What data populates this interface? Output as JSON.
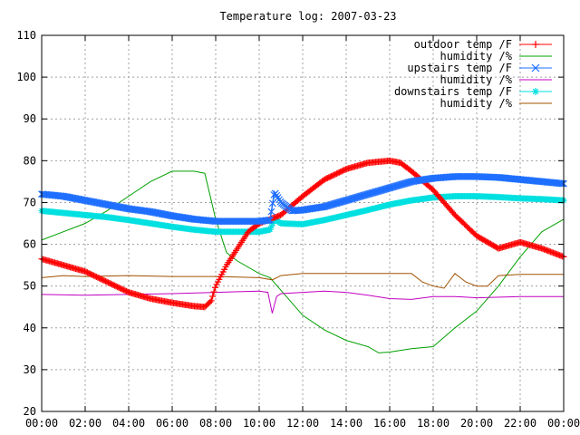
{
  "chart_data": {
    "type": "line",
    "title": "Temperature log: 2007-03-23",
    "xlabel": "",
    "ylabel": "",
    "xlim": [
      0,
      24
    ],
    "ylim": [
      20,
      110
    ],
    "x_ticks": [
      "00:00",
      "02:00",
      "04:00",
      "06:00",
      "08:00",
      "10:00",
      "12:00",
      "14:00",
      "16:00",
      "18:00",
      "20:00",
      "22:00",
      "00:00"
    ],
    "y_ticks": [
      "20",
      "30",
      "40",
      "50",
      "60",
      "70",
      "80",
      "90",
      "100",
      "110"
    ],
    "grid": true,
    "legend_position": "top-right",
    "series": [
      {
        "name": "outdoor temp /F",
        "color": "#ff0000",
        "marker": "plus",
        "x": [
          0,
          1,
          2,
          3,
          4,
          5,
          6,
          7,
          7.5,
          7.8,
          8,
          8.5,
          9,
          9.5,
          10,
          11,
          12,
          13,
          14,
          15,
          16,
          16.5,
          17,
          18,
          19,
          20,
          21,
          22,
          23,
          24
        ],
        "y": [
          56.5,
          55,
          53.5,
          51,
          48.5,
          47,
          46,
          45.2,
          45,
          46.5,
          50,
          55,
          59,
          63,
          65,
          67,
          71.5,
          75.5,
          78,
          79.5,
          80,
          79.5,
          77.5,
          73,
          67,
          62,
          59,
          60.5,
          59,
          57
        ]
      },
      {
        "name": "humidity /%",
        "color": "#00a000",
        "marker": "none",
        "x": [
          0,
          1,
          2,
          3,
          4,
          5,
          6,
          7,
          7.5,
          8,
          8.5,
          9,
          10,
          10.5,
          11,
          12,
          13,
          14,
          15,
          15.5,
          16,
          17,
          18,
          19,
          20,
          21,
          22,
          23,
          24
        ],
        "y": [
          61,
          63,
          65,
          68,
          71.5,
          75,
          77.5,
          77.5,
          77,
          66,
          58,
          56,
          53,
          52,
          49,
          43,
          39.5,
          37,
          35.5,
          34,
          34.2,
          35,
          35.5,
          40,
          44,
          50,
          57,
          63,
          66
        ]
      },
      {
        "name": "upstairs temp /F",
        "color": "#1f6fff",
        "marker": "x",
        "x": [
          0,
          1,
          2,
          3,
          4,
          5,
          6,
          7,
          8,
          9,
          10,
          10.5,
          10.7,
          11,
          11.5,
          12,
          13,
          14,
          15,
          16,
          17,
          18,
          19,
          20,
          21,
          22,
          23,
          24
        ],
        "y": [
          72,
          71.5,
          70.5,
          69.5,
          68.5,
          67.8,
          66.8,
          66,
          65.5,
          65.5,
          65.5,
          65.8,
          72.5,
          70,
          68,
          68.2,
          69,
          70.5,
          72,
          73.5,
          75,
          75.8,
          76.2,
          76.2,
          76,
          75.5,
          75,
          74.5
        ]
      },
      {
        "name": "humidity /%",
        "color": "#c000c0",
        "marker": "none",
        "x": [
          0,
          2,
          4,
          6,
          8,
          10,
          10.4,
          10.6,
          10.8,
          11,
          12,
          13,
          14,
          15,
          16,
          17,
          18,
          19,
          20,
          22,
          24
        ],
        "y": [
          48,
          47.8,
          48,
          48.2,
          48.5,
          48.8,
          48.5,
          43.5,
          47.5,
          48.2,
          48.5,
          48.8,
          48.5,
          47.8,
          47,
          46.8,
          47.5,
          47.5,
          47.2,
          47.5,
          47.5
        ]
      },
      {
        "name": "downstairs temp /F",
        "color": "#00e0e0",
        "marker": "star",
        "x": [
          0,
          1,
          2,
          3,
          4,
          5,
          6,
          7,
          8,
          9,
          10,
          10.5,
          10.7,
          11,
          12,
          13,
          14,
          15,
          16,
          17,
          18,
          19,
          20,
          21,
          22,
          23,
          24
        ],
        "y": [
          68,
          67.5,
          67,
          66.5,
          65.8,
          65,
          64.2,
          63.5,
          63,
          63,
          63,
          63.5,
          66,
          65,
          64.8,
          65.8,
          67,
          68.2,
          69.5,
          70.5,
          71.2,
          71.5,
          71.5,
          71.3,
          71,
          70.8,
          70.5
        ]
      },
      {
        "name": "humidity /%",
        "color": "#a05000",
        "marker": "none",
        "x": [
          0,
          1,
          2,
          4,
          6,
          8,
          10,
          10.6,
          11,
          12,
          14,
          16,
          17,
          17.5,
          18,
          18.5,
          19,
          19.5,
          20,
          20.5,
          21,
          22,
          23,
          24
        ],
        "y": [
          52,
          52.5,
          52.3,
          52.5,
          52.3,
          52.3,
          52,
          51.5,
          52.5,
          53,
          53,
          53,
          53,
          51,
          50,
          49.5,
          53,
          51,
          50,
          50,
          52.5,
          52.8,
          52.8,
          52.8
        ]
      }
    ]
  }
}
